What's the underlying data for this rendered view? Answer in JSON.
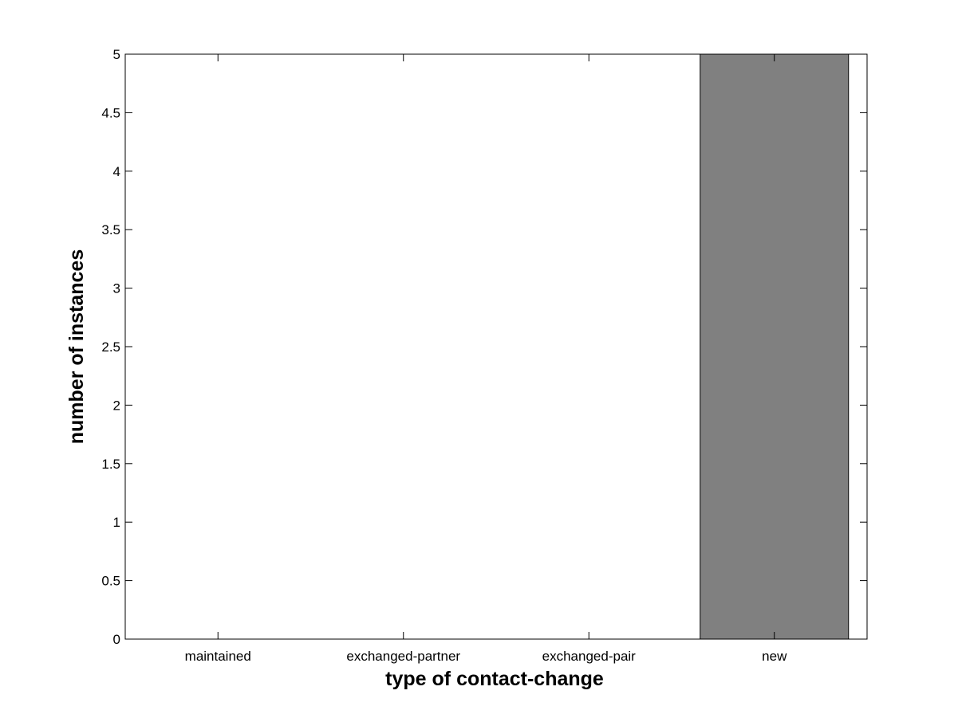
{
  "chart_data": {
    "type": "bar",
    "title": "",
    "xlabel": "type of contact-change",
    "ylabel": "number of instances",
    "categories": [
      "maintained",
      "exchanged-partner",
      "exchanged-pair",
      "new"
    ],
    "values": [
      0,
      0,
      0,
      5
    ],
    "ylim": [
      0,
      5
    ],
    "yticks": [
      "0",
      "0.5",
      "1",
      "1.5",
      "2",
      "2.5",
      "3",
      "3.5",
      "4",
      "4.5",
      "5"
    ],
    "grid": false,
    "bar_color": "#808080",
    "bar_edge_color": "#000000"
  }
}
